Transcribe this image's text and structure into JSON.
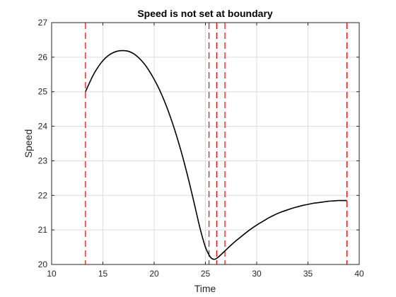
{
  "chart_data": {
    "type": "line",
    "title": "Speed is not set at boundary",
    "xlabel": "Time",
    "ylabel": "Speed",
    "xlim": [
      10,
      40
    ],
    "ylim": [
      20,
      27
    ],
    "xticks": [
      10,
      15,
      20,
      25,
      30,
      35,
      40
    ],
    "yticks": [
      20,
      21,
      22,
      23,
      24,
      25,
      26,
      27
    ],
    "grid": true,
    "legend": "none",
    "series": [
      {
        "color": "#000000",
        "style": "solid",
        "x": [
          13.3,
          14,
          14.5,
          15,
          15.5,
          16,
          16.5,
          17,
          17.5,
          18,
          18.5,
          19,
          19.5,
          20,
          20.5,
          21,
          21.5,
          22,
          22.5,
          23,
          23.5,
          24,
          24.5,
          25,
          25.4,
          25.6,
          25.8,
          26.0,
          26.2,
          26.5,
          27,
          27.5,
          28,
          28.5,
          29,
          29.5,
          30,
          30.5,
          31,
          31.5,
          32,
          32.5,
          33,
          33.5,
          34,
          34.5,
          35,
          35.5,
          36,
          36.5,
          37,
          37.5,
          38,
          38.5,
          38.8
        ],
        "y": [
          25.0,
          25.45,
          25.7,
          25.9,
          26.04,
          26.13,
          26.18,
          26.19,
          26.17,
          26.1,
          25.98,
          25.82,
          25.61,
          25.36,
          25.07,
          24.73,
          24.34,
          23.9,
          23.41,
          22.87,
          22.28,
          21.65,
          21.02,
          20.5,
          20.25,
          20.18,
          20.15,
          20.16,
          20.2,
          20.28,
          20.42,
          20.56,
          20.69,
          20.81,
          20.93,
          21.04,
          21.14,
          21.23,
          21.32,
          21.4,
          21.47,
          21.53,
          21.58,
          21.63,
          21.67,
          21.71,
          21.74,
          21.77,
          21.79,
          21.81,
          21.83,
          21.84,
          21.85,
          21.85,
          21.85
        ]
      }
    ],
    "reference_lines": {
      "orientation": "vertical",
      "color": "#ff0000",
      "style": "dashed",
      "x": [
        13.3,
        25.35,
        26.1,
        26.9,
        38.8
      ]
    }
  }
}
